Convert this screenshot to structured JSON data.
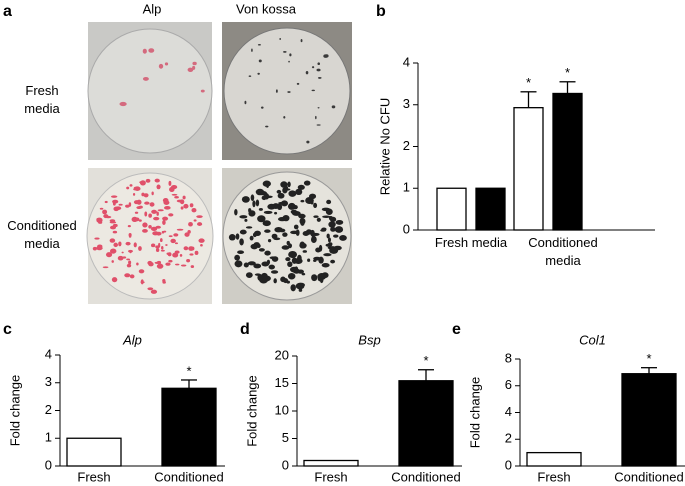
{
  "panel_a": {
    "panel_label": "a",
    "columns": [
      "Alp",
      "Von kossa"
    ],
    "rows": [
      "Fresh media",
      "Conditioned media"
    ]
  },
  "chart_data": [
    {
      "type": "bar",
      "panel_label": "b",
      "y_label": "Relative No CFU",
      "categories": [
        "Fresh media",
        "Conditioned media"
      ],
      "series": [
        {
          "color": "#ffffff",
          "values": [
            1,
            2.93
          ],
          "errors": [
            null,
            0.38
          ],
          "markers": [
            null,
            "*"
          ]
        },
        {
          "color": "#000000",
          "values": [
            1,
            3.27
          ],
          "errors": [
            null,
            0.28
          ],
          "markers": [
            null,
            "*"
          ]
        }
      ],
      "ylim": [
        0,
        4
      ],
      "yticks": [
        0,
        1,
        2,
        3,
        4
      ]
    },
    {
      "type": "bar",
      "panel_label": "c",
      "title": "Alp",
      "y_label": "Fold change",
      "categories": [
        "Fresh",
        "Conditioned"
      ],
      "colors": [
        "#ffffff",
        "#000000"
      ],
      "values": [
        1,
        2.8
      ],
      "errors": [
        null,
        0.3
      ],
      "markers": [
        null,
        "*"
      ],
      "ylim": [
        0,
        4
      ],
      "yticks": [
        0,
        1,
        2,
        3,
        4
      ]
    },
    {
      "type": "bar",
      "panel_label": "d",
      "title": "Bsp",
      "y_label": "Fold change",
      "categories": [
        "Fresh",
        "Conditioned"
      ],
      "colors": [
        "#ffffff",
        "#000000"
      ],
      "values": [
        1,
        15.5
      ],
      "errors": [
        null,
        2
      ],
      "markers": [
        null,
        "*"
      ],
      "ylim": [
        0,
        20
      ],
      "yticks": [
        0,
        5,
        10,
        15,
        20
      ]
    },
    {
      "type": "bar",
      "panel_label": "e",
      "title": "Col1",
      "y_label": "Fold change",
      "categories": [
        "Fresh",
        "Conditioned"
      ],
      "colors": [
        "#ffffff",
        "#000000"
      ],
      "values": [
        1,
        6.9
      ],
      "errors": [
        null,
        0.45
      ],
      "markers": [
        null,
        "*"
      ],
      "ylim": [
        0,
        8
      ],
      "yticks": [
        0,
        2,
        4,
        6,
        8
      ]
    }
  ]
}
